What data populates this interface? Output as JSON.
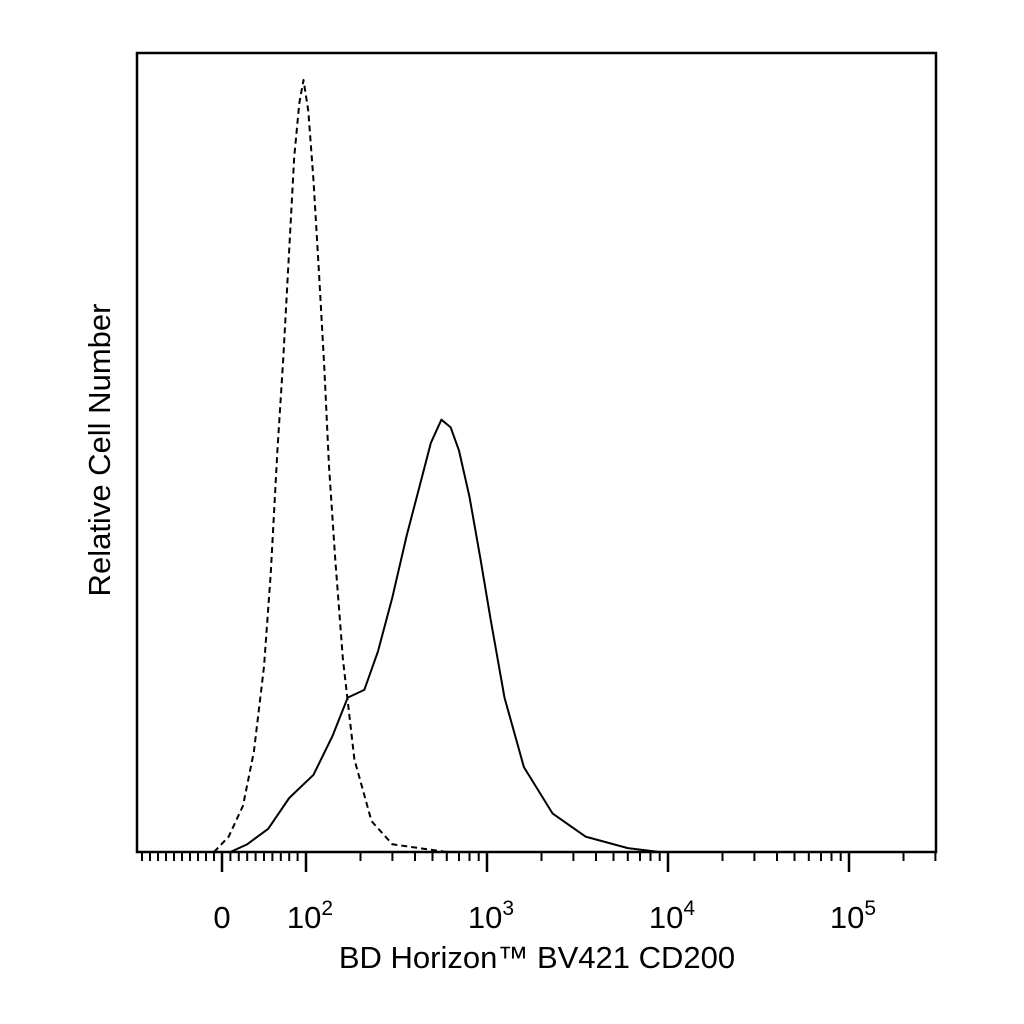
{
  "chart_data": {
    "type": "line",
    "xlabel": "BD Horizon™ BV421 CD200",
    "ylabel": "Relative Cell Number",
    "x_scale": "biexponential",
    "grid": false,
    "legend": "none",
    "xlim": [
      -100,
      200000
    ],
    "ylim": [
      0,
      1
    ],
    "x_ticks": [
      {
        "value": 0,
        "base": "0",
        "exp": ""
      },
      {
        "value": 100,
        "base": "10",
        "exp": "2"
      },
      {
        "value": 1000,
        "base": "10",
        "exp": "3"
      },
      {
        "value": 10000,
        "base": "10",
        "exp": "4"
      },
      {
        "value": 100000,
        "base": "10",
        "exp": "5"
      }
    ],
    "series": [
      {
        "style": "dashed",
        "points": [
          [
            -10,
            0.0
          ],
          [
            8,
            0.02
          ],
          [
            25,
            0.06
          ],
          [
            38,
            0.13
          ],
          [
            50,
            0.24
          ],
          [
            58,
            0.36
          ],
          [
            66,
            0.52
          ],
          [
            73,
            0.64
          ],
          [
            80,
            0.78
          ],
          [
            86,
            0.9
          ],
          [
            92,
            0.97
          ],
          [
            97,
            1.0
          ],
          [
            103,
            0.96
          ],
          [
            110,
            0.87
          ],
          [
            118,
            0.75
          ],
          [
            126,
            0.63
          ],
          [
            134,
            0.5
          ],
          [
            145,
            0.38
          ],
          [
            160,
            0.25
          ],
          [
            185,
            0.12
          ],
          [
            230,
            0.04
          ],
          [
            300,
            0.01
          ],
          [
            600,
            0.0
          ],
          [
            2000,
            0.0
          ]
        ]
      },
      {
        "style": "solid",
        "points": [
          [
            10,
            0.0
          ],
          [
            30,
            0.01
          ],
          [
            55,
            0.03
          ],
          [
            80,
            0.07
          ],
          [
            110,
            0.1
          ],
          [
            140,
            0.15
          ],
          [
            170,
            0.2
          ],
          [
            210,
            0.21
          ],
          [
            250,
            0.26
          ],
          [
            300,
            0.33
          ],
          [
            360,
            0.41
          ],
          [
            420,
            0.47
          ],
          [
            490,
            0.53
          ],
          [
            560,
            0.56
          ],
          [
            630,
            0.55
          ],
          [
            700,
            0.52
          ],
          [
            800,
            0.46
          ],
          [
            920,
            0.38
          ],
          [
            1050,
            0.3
          ],
          [
            1250,
            0.2
          ],
          [
            1600,
            0.11
          ],
          [
            2300,
            0.05
          ],
          [
            3500,
            0.02
          ],
          [
            6000,
            0.005
          ],
          [
            9000,
            0.0
          ]
        ]
      }
    ]
  }
}
